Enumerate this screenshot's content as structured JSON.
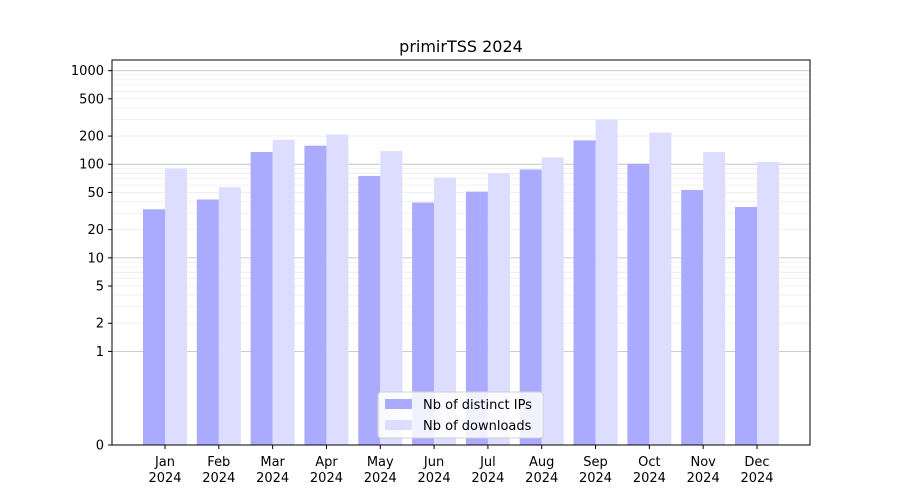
{
  "chart_data": {
    "type": "bar",
    "title": "primirTSS 2024",
    "xlabel": "",
    "ylabel": "",
    "y_scale": "symlog",
    "ylim": [
      0,
      1300
    ],
    "y_ticks": [
      0,
      1,
      2,
      5,
      10,
      20,
      50,
      100,
      200,
      500,
      1000
    ],
    "y_tick_labels": [
      "0",
      "1",
      "2",
      "5",
      "10",
      "20",
      "50",
      "100",
      "200",
      "500",
      "1000"
    ],
    "grid": true,
    "legend_position": "bottom-center",
    "categories": [
      {
        "month": "Jan",
        "year": "2024"
      },
      {
        "month": "Feb",
        "year": "2024"
      },
      {
        "month": "Mar",
        "year": "2024"
      },
      {
        "month": "Apr",
        "year": "2024"
      },
      {
        "month": "May",
        "year": "2024"
      },
      {
        "month": "Jun",
        "year": "2024"
      },
      {
        "month": "Jul",
        "year": "2024"
      },
      {
        "month": "Aug",
        "year": "2024"
      },
      {
        "month": "Sep",
        "year": "2024"
      },
      {
        "month": "Oct",
        "year": "2024"
      },
      {
        "month": "Nov",
        "year": "2024"
      },
      {
        "month": "Dec",
        "year": "2024"
      }
    ],
    "series": [
      {
        "name": "Nb of distinct IPs",
        "color": "#aaaaff",
        "values": [
          33,
          42,
          135,
          158,
          75,
          39,
          51,
          88,
          180,
          101,
          53,
          35
        ]
      },
      {
        "name": "Nb of downloads",
        "color": "#ddddff",
        "values": [
          90,
          57,
          182,
          208,
          138,
          72,
          80,
          118,
          300,
          218,
          135,
          106
        ]
      }
    ]
  }
}
